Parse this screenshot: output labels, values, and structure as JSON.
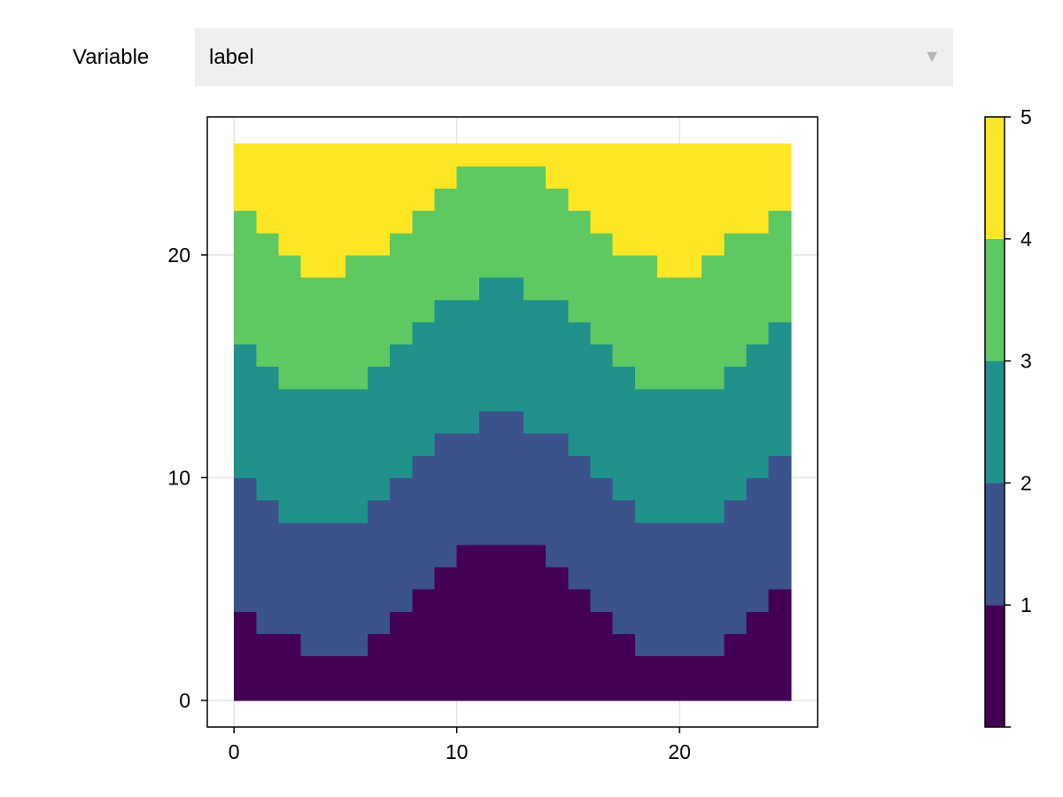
{
  "controls": {
    "variable_label": "Variable",
    "selected_variable": "label",
    "dropdown_icon": "triangle-down-icon"
  },
  "chart_data": {
    "type": "heatmap",
    "title": "",
    "xlabel": "",
    "ylabel": "",
    "x_range": [
      0,
      25
    ],
    "y_range": [
      0,
      25
    ],
    "xlim": [
      -1.2,
      26.2
    ],
    "ylim": [
      -1.2,
      26.2
    ],
    "grid": true,
    "x_ticks": [
      0,
      10,
      20
    ],
    "y_ticks": [
      0,
      10,
      20
    ],
    "levels": [
      0,
      1,
      2,
      3,
      4,
      5
    ],
    "colormap": [
      "#440154",
      "#3b528b",
      "#21918c",
      "#5ec962",
      "#fde725"
    ],
    "colorbar_ticks": [
      1,
      2,
      3,
      4,
      5
    ],
    "boundaries": {
      "b1": [
        4,
        3,
        3,
        2,
        2,
        2,
        3,
        4,
        5,
        6,
        7,
        7,
        7,
        7,
        6,
        5,
        4,
        3,
        2,
        2,
        2,
        2,
        3,
        4,
        5
      ],
      "b2": [
        10,
        9,
        8,
        8,
        8,
        8,
        9,
        10,
        11,
        12,
        12,
        13,
        13,
        12,
        12,
        11,
        10,
        9,
        8,
        8,
        8,
        8,
        9,
        10,
        11
      ],
      "b3": [
        16,
        15,
        14,
        14,
        14,
        14,
        15,
        16,
        17,
        18,
        18,
        19,
        19,
        18,
        18,
        17,
        16,
        15,
        14,
        14,
        14,
        14,
        15,
        16,
        17
      ],
      "b4": [
        22,
        21,
        20,
        19,
        19,
        20,
        20,
        21,
        22,
        23,
        24,
        24,
        24,
        24,
        23,
        22,
        21,
        20,
        20,
        19,
        19,
        20,
        21,
        21,
        22
      ],
      "top": 25
    }
  }
}
